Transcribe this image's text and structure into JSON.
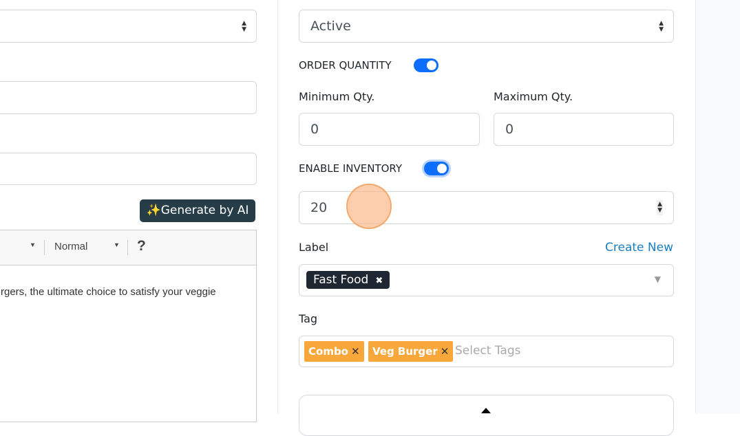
{
  "left": {
    "ai_button": "Generate by AI",
    "toolbar": {
      "format": "Normal",
      "help": "?"
    },
    "editor_text": "rgers, the ultimate choice to satisfy your veggie"
  },
  "right": {
    "status_select": "Active",
    "order_quantity": {
      "label": "ORDER QUANTITY",
      "enabled": true
    },
    "min_qty": {
      "label": "Minimum Qty.",
      "value": "0"
    },
    "max_qty": {
      "label": "Maximum Qty.",
      "value": "0"
    },
    "inventory": {
      "label": "ENABLE INVENTORY",
      "enabled": true,
      "value": "20"
    },
    "label_field": {
      "label": "Label",
      "create_new": "Create New",
      "chips": [
        "Fast Food"
      ]
    },
    "tag_field": {
      "label": "Tag",
      "chips": [
        "Combo",
        "Veg Burger"
      ],
      "placeholder": "Select Tags"
    }
  },
  "colors": {
    "accent": "#0d6efd",
    "link": "#1a7fc1",
    "tag": "#f8a83b",
    "ai_button": "#263d47"
  }
}
